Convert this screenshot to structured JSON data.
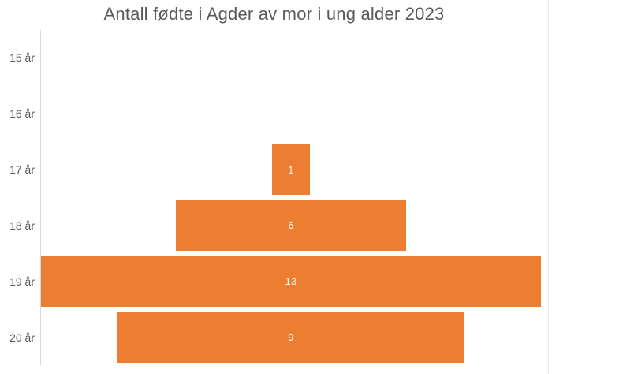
{
  "chart_data": {
    "type": "bar",
    "variant": "horizontal-centered-funnel",
    "title": "Antall fødte i Agder av mor i ung alder 2023",
    "categories": [
      "15 år",
      "16 år",
      "17 år",
      "18 år",
      "19 år",
      "20 år"
    ],
    "values": [
      0,
      0,
      1,
      6,
      13,
      9
    ],
    "data_labels": [
      "",
      "",
      "1",
      "6",
      "13",
      "9"
    ],
    "xlabel": "",
    "ylabel": "",
    "x_axis": "hidden",
    "grid": "off",
    "legend": "none",
    "value_range": [
      0,
      13.2
    ],
    "colors": {
      "bar_fill": "#ED7D31",
      "bar_value_text": "#FFFFFF",
      "title_text": "#595959",
      "category_text": "#595959",
      "axis_line": "#D9D9D9",
      "chart_border": "#EBEBEB",
      "background": "#FFFFFF"
    }
  }
}
